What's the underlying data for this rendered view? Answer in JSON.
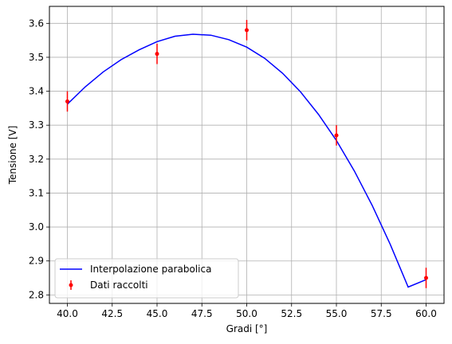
{
  "chart_data": {
    "type": "scatter",
    "xlabel": "Gradi [°]",
    "ylabel": "Tensione [V]",
    "xlim": [
      39.0,
      61.0
    ],
    "ylim": [
      2.775,
      3.65
    ],
    "grid": true,
    "legend_position": "lower-left",
    "x_ticks": [
      "40.0",
      "42.5",
      "45.0",
      "47.5",
      "50.0",
      "52.5",
      "55.0",
      "57.5",
      "60.0"
    ],
    "y_ticks": [
      "2.8",
      "2.9",
      "3.0",
      "3.1",
      "3.2",
      "3.3",
      "3.4",
      "3.5",
      "3.6"
    ],
    "series": [
      {
        "name": "Interpolazione parabolica",
        "kind": "line",
        "color": "#0000ff",
        "x": [
          40,
          41,
          42,
          43,
          44,
          45,
          46,
          47,
          48,
          49,
          50,
          51,
          52,
          53,
          54,
          55,
          56,
          57,
          58,
          59,
          60
        ],
        "y": [
          3.362,
          3.413,
          3.457,
          3.493,
          3.522,
          3.546,
          3.562,
          3.568,
          3.565,
          3.552,
          3.53,
          3.497,
          3.453,
          3.398,
          3.332,
          3.255,
          3.165,
          3.063,
          2.949,
          2.823,
          2.845
        ]
      },
      {
        "name": "Dati raccolti",
        "kind": "errorbar",
        "color": "#ff0000",
        "x": [
          40,
          45,
          50,
          55,
          60
        ],
        "y": [
          3.37,
          3.51,
          3.58,
          3.27,
          2.85
        ],
        "yerr": [
          0.03,
          0.03,
          0.03,
          0.03,
          0.03
        ]
      }
    ]
  }
}
